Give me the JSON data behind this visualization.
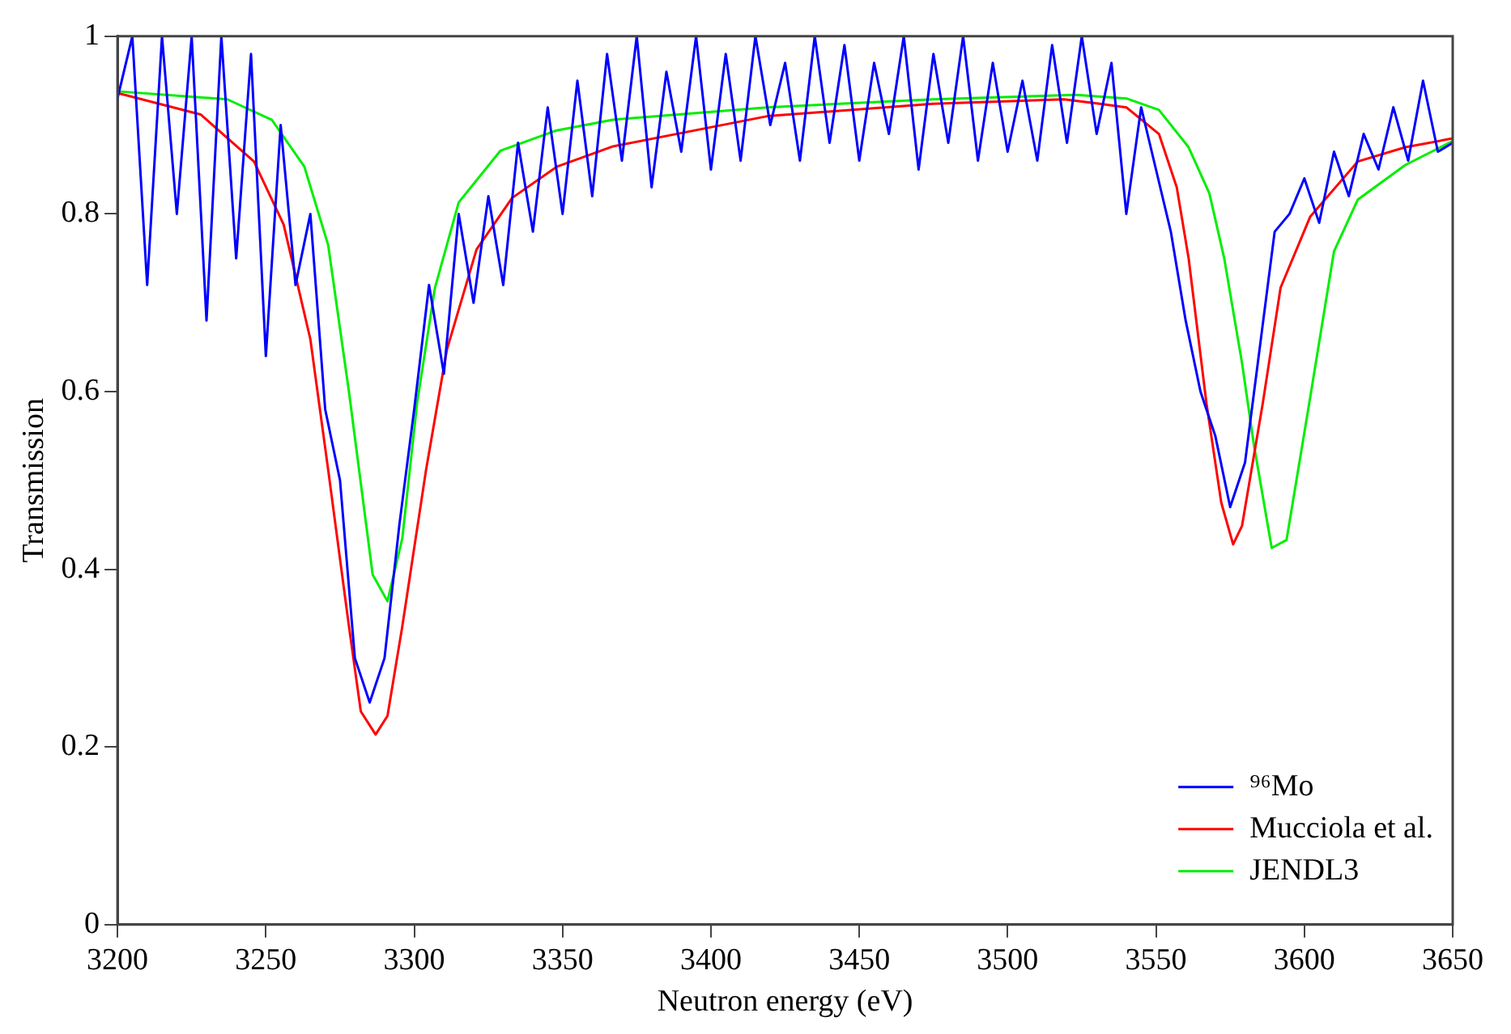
{
  "chart_data": {
    "type": "line",
    "xlabel": "Neutron energy (eV)",
    "ylabel": "Transmission",
    "xlim": [
      3200,
      3650
    ],
    "xticks": [
      3200,
      3250,
      3300,
      3350,
      3400,
      3450,
      3500,
      3550,
      3600,
      3650
    ],
    "ylim": [
      0,
      1
    ],
    "yticks": [
      0,
      0.2,
      0.4,
      0.6,
      0.8,
      1
    ],
    "grid": false,
    "legend": "bottom right",
    "marker": "none",
    "line_style": "solid",
    "series": [
      {
        "name": "⁹⁶Mo",
        "color": "#0000ff",
        "x": [
          3200,
          3205,
          3210,
          3215,
          3220,
          3225,
          3230,
          3235,
          3240,
          3245,
          3250,
          3255,
          3260,
          3265,
          3270,
          3275,
          3280,
          3285,
          3290,
          3295,
          3300,
          3305,
          3310,
          3315,
          3320,
          3325,
          3330,
          3335,
          3340,
          3345,
          3350,
          3355,
          3360,
          3365,
          3370,
          3375,
          3380,
          3385,
          3390,
          3395,
          3400,
          3405,
          3410,
          3415,
          3420,
          3425,
          3430,
          3435,
          3440,
          3445,
          3450,
          3455,
          3460,
          3465,
          3470,
          3475,
          3480,
          3485,
          3490,
          3495,
          3500,
          3505,
          3510,
          3515,
          3520,
          3525,
          3530,
          3535,
          3540,
          3545,
          3550,
          3555,
          3560,
          3565,
          3570,
          3575,
          3580,
          3585,
          3590,
          3595,
          3600,
          3605,
          3610,
          3615,
          3620,
          3625,
          3630,
          3635,
          3640,
          3645,
          3650
        ],
        "values": [
          0.93,
          1.0,
          0.72,
          1.0,
          0.8,
          1.0,
          0.68,
          1.0,
          0.75,
          0.98,
          0.64,
          0.9,
          0.72,
          0.8,
          0.58,
          0.5,
          0.3,
          0.25,
          0.3,
          0.45,
          0.58,
          0.72,
          0.62,
          0.8,
          0.7,
          0.82,
          0.72,
          0.88,
          0.78,
          0.92,
          0.8,
          0.95,
          0.82,
          0.98,
          0.86,
          1.0,
          0.83,
          0.96,
          0.87,
          1.0,
          0.85,
          0.98,
          0.86,
          1.0,
          0.9,
          0.97,
          0.86,
          1.0,
          0.88,
          0.99,
          0.86,
          0.97,
          0.89,
          1.0,
          0.85,
          0.98,
          0.88,
          1.0,
          0.86,
          0.97,
          0.87,
          0.95,
          0.86,
          0.99,
          0.88,
          1.0,
          0.89,
          0.97,
          0.8,
          0.92,
          0.85,
          0.78,
          0.68,
          0.6,
          0.55,
          0.47,
          0.52,
          0.65,
          0.78,
          0.8,
          0.84,
          0.79,
          0.87,
          0.82,
          0.89,
          0.85,
          0.92,
          0.86,
          0.95,
          0.87,
          0.88
        ]
      },
      {
        "name": "Mucciola et al.",
        "color": "#ff0000",
        "x": [
          3200,
          3228,
          3246,
          3256,
          3265,
          3271,
          3278,
          3282,
          3287,
          3291,
          3296,
          3304,
          3311,
          3321,
          3333,
          3348,
          3367,
          3419,
          3475,
          3519,
          3531,
          3540,
          3551,
          3557,
          3561,
          3567,
          3572,
          3576,
          3579,
          3586,
          3592,
          3602,
          3618,
          3634,
          3650
        ],
        "values": [
          0.936,
          0.912,
          0.859,
          0.788,
          0.659,
          0.512,
          0.336,
          0.24,
          0.214,
          0.235,
          0.336,
          0.512,
          0.647,
          0.76,
          0.818,
          0.853,
          0.876,
          0.91,
          0.924,
          0.929,
          0.924,
          0.92,
          0.89,
          0.83,
          0.75,
          0.587,
          0.475,
          0.428,
          0.449,
          0.587,
          0.717,
          0.797,
          0.859,
          0.875,
          0.885
        ]
      },
      {
        "name": "JENDL3",
        "color": "#00ee00",
        "x": [
          3200,
          3237,
          3252,
          3263,
          3271,
          3278,
          3286,
          3291,
          3296,
          3301,
          3307,
          3315,
          3329,
          3348,
          3367,
          3419,
          3475,
          3523,
          3540,
          3551,
          3561,
          3568,
          3573,
          3579,
          3583,
          3589,
          3594,
          3602,
          3610,
          3618,
          3634,
          3650
        ],
        "values": [
          0.938,
          0.929,
          0.906,
          0.853,
          0.765,
          0.6,
          0.394,
          0.364,
          0.435,
          0.588,
          0.717,
          0.813,
          0.871,
          0.894,
          0.906,
          0.92,
          0.929,
          0.934,
          0.93,
          0.917,
          0.875,
          0.823,
          0.75,
          0.632,
          0.54,
          0.424,
          0.433,
          0.594,
          0.758,
          0.816,
          0.855,
          0.882
        ]
      }
    ]
  }
}
